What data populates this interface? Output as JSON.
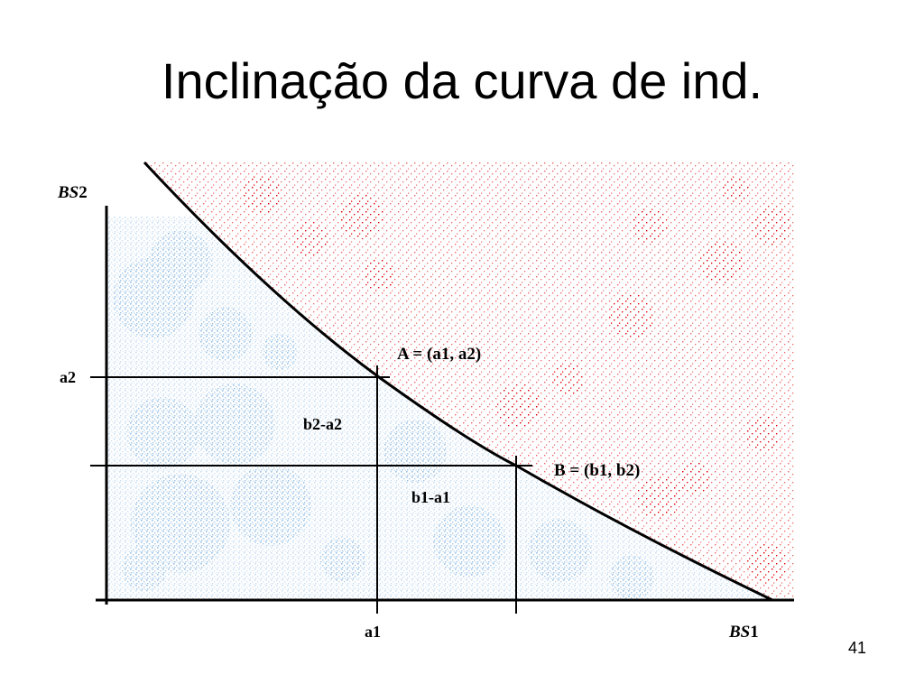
{
  "slide": {
    "title": "Inclinação da curva de ind.",
    "page_number": "41"
  },
  "diagram": {
    "axis_y_label_italic": "BS",
    "axis_y_label_num": "2",
    "axis_x_label_italic": "BS",
    "axis_x_label_num": "1",
    "tick_a2": "a2",
    "tick_a1": "a1",
    "point_A": "A = (a1, a2)",
    "point_B": "B = (b1, b2)",
    "delta_vertical": "b2-a2",
    "delta_horizontal": "b1-a1",
    "colors": {
      "below_region": "#9cc3e6",
      "above_region": "#e00000",
      "lines": "#000000"
    }
  }
}
